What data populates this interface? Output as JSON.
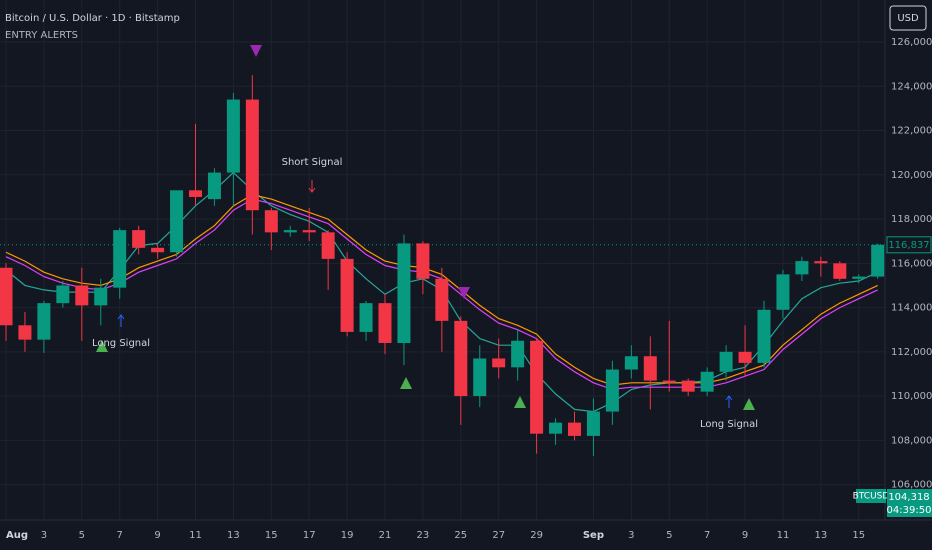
{
  "chart_data": {
    "type": "candlestick",
    "title": "Bitcoin / U.S. Dollar · 1D · Bitstamp",
    "subtitle": "ENTRY ALERTS",
    "currency_button": "USD",
    "categories": [
      "Aug",
      null,
      "3",
      null,
      "5",
      null,
      "7",
      null,
      "9",
      null,
      "11",
      null,
      "13",
      null,
      "15",
      null,
      "17",
      null,
      "19",
      null,
      "21",
      null,
      "23",
      null,
      "25",
      null,
      "27",
      null,
      "29",
      null,
      null,
      "Sep",
      null,
      "3",
      null,
      "5",
      null,
      "7",
      null,
      "9",
      null,
      "11",
      null,
      "13",
      null,
      "15",
      null
    ],
    "open": [
      115800,
      113200,
      112550,
      114200,
      115000,
      114100,
      114900,
      117500,
      116700,
      116500,
      119300,
      118900,
      120100,
      123400,
      118400,
      117400,
      117500,
      117400,
      116200,
      112900,
      114200,
      112400,
      116900,
      115300,
      113400,
      110000,
      111700,
      111300,
      112500,
      108300,
      108800,
      108200,
      109300,
      111200,
      111800,
      110700,
      110700,
      110200,
      111100,
      112000,
      111500,
      113900,
      115500,
      116100,
      116000,
      115300,
      115400
    ],
    "high": [
      116000,
      113800,
      114300,
      115200,
      115800,
      115300,
      117600,
      117700,
      116900,
      119300,
      122300,
      120300,
      123700,
      124500,
      118500,
      117700,
      118500,
      117500,
      116500,
      114300,
      114600,
      117300,
      117000,
      115800,
      113600,
      112300,
      112600,
      113000,
      112600,
      109000,
      109300,
      109900,
      111600,
      112300,
      112700,
      113400,
      110800,
      111300,
      112300,
      113200,
      114300,
      115700,
      116300,
      116300,
      116100,
      115500,
      116900
    ],
    "low": [
      112500,
      112000,
      111950,
      114000,
      112500,
      113200,
      114400,
      116400,
      116200,
      116300,
      118600,
      118600,
      118600,
      117300,
      116600,
      117200,
      117000,
      114800,
      112700,
      112500,
      111900,
      111400,
      114600,
      112000,
      108700,
      109500,
      110800,
      110700,
      107400,
      107800,
      108000,
      107300,
      108700,
      110800,
      109400,
      110200,
      110000,
      110000,
      110700,
      110900,
      111300,
      113500,
      115200,
      115400,
      115200,
      115100,
      115300
    ],
    "close": [
      113200,
      112550,
      114200,
      115000,
      114100,
      114900,
      117500,
      116700,
      116500,
      119300,
      119000,
      120100,
      123400,
      118400,
      117400,
      117500,
      117400,
      116200,
      112900,
      114200,
      112400,
      116900,
      115300,
      113400,
      110000,
      111700,
      111300,
      112500,
      108300,
      108800,
      108200,
      109300,
      111200,
      111800,
      110700,
      110600,
      110200,
      111100,
      112000,
      111500,
      113900,
      115500,
      116100,
      116000,
      115300,
      115400,
      116837
    ],
    "up_color": "#089981",
    "down_color": "#f23645",
    "overlays": [
      {
        "color": "#26a69a",
        "values": [
          115700,
          115000,
          114800,
          114700,
          114700,
          114700,
          115700,
          116800,
          116900,
          117700,
          118600,
          119300,
          120100,
          119300,
          118600,
          118200,
          117900,
          117400,
          116100,
          115300,
          114600,
          115100,
          115300,
          114800,
          113400,
          112600,
          112300,
          112300,
          111000,
          110100,
          109400,
          109300,
          109700,
          110300,
          110500,
          110600,
          110600,
          110700,
          111100,
          111300,
          112300,
          113400,
          114400,
          114900,
          115100,
          115200,
          115600
        ]
      },
      {
        "color": "#ff9800",
        "values": [
          116500,
          116100,
          115600,
          115300,
          115100,
          115000,
          115300,
          115800,
          116100,
          116400,
          117100,
          117700,
          118600,
          119100,
          118900,
          118600,
          118300,
          118000,
          117300,
          116600,
          116100,
          115900,
          115800,
          115500,
          114800,
          114100,
          113500,
          113200,
          112800,
          111900,
          111300,
          110800,
          110500,
          110600,
          110600,
          110600,
          110600,
          110600,
          110800,
          111100,
          111400,
          112300,
          113000,
          113700,
          114200,
          114600,
          115000
        ]
      },
      {
        "color": "#e040fb",
        "values": [
          116300,
          115900,
          115400,
          115100,
          114900,
          114800,
          115100,
          115600,
          115900,
          116200,
          116900,
          117500,
          118400,
          118900,
          118700,
          118400,
          118100,
          117800,
          117100,
          116400,
          115900,
          115700,
          115600,
          115300,
          114600,
          113900,
          113300,
          113000,
          112600,
          111700,
          111100,
          110600,
          110300,
          110400,
          110400,
          110400,
          110400,
          110400,
          110600,
          110900,
          111200,
          112100,
          112800,
          113500,
          114000,
          114400,
          114800
        ]
      }
    ],
    "ylim": [
      104400,
      127900
    ],
    "yticks": [
      {
        "value": 106000,
        "label": "106,000"
      },
      {
        "value": 108000,
        "label": "108,000"
      },
      {
        "value": 110000,
        "label": "110,000"
      },
      {
        "value": 112000,
        "label": "112,000"
      },
      {
        "value": 114000,
        "label": "114,000"
      },
      {
        "value": 116000,
        "label": "116,000"
      },
      {
        "value": 118000,
        "label": "118,000"
      },
      {
        "value": 120000,
        "label": "120,000"
      },
      {
        "value": 122000,
        "label": "122,000"
      },
      {
        "value": 124000,
        "label": "124,000"
      },
      {
        "value": 126000,
        "label": "126,000"
      }
    ],
    "grid": true,
    "last_price": {
      "value": 116837,
      "label": "116,837"
    },
    "symbol_tag": "BTCUSD",
    "price_tag": "104,318",
    "countdown": "04:39:50",
    "annotations": [
      "Short Signal",
      "Long Signal",
      "Long Signal"
    ]
  }
}
